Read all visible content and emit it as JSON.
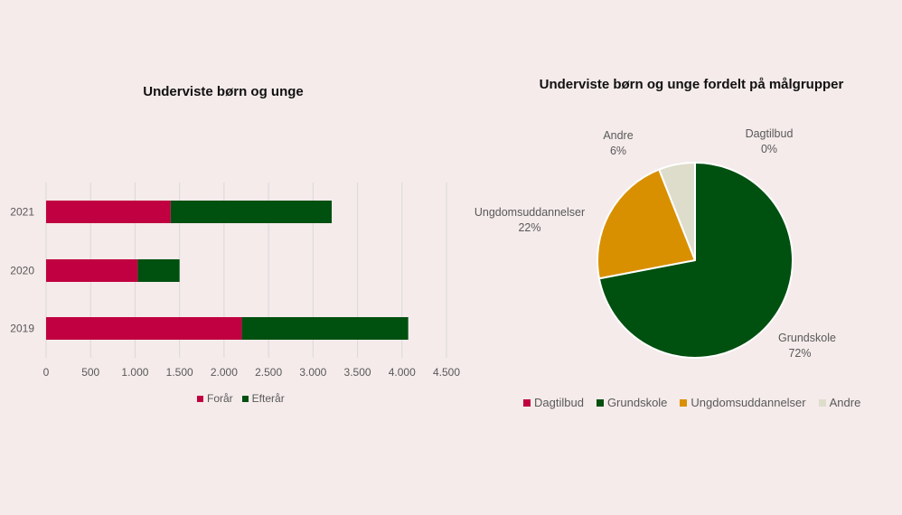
{
  "chart_data": [
    {
      "type": "bar",
      "orientation": "horizontal",
      "stacked": true,
      "title": "Underviste børn og unge",
      "categories": [
        "2021",
        "2020",
        "2019"
      ],
      "series": [
        {
          "name": "Forår",
          "color": "#c00040",
          "values": [
            1400,
            1030,
            2200
          ]
        },
        {
          "name": "Efterår",
          "color": "#005010",
          "values": [
            1810,
            470,
            1870
          ]
        }
      ],
      "xlim": [
        0,
        4500
      ],
      "xticks": [
        "0",
        "500",
        "1.000",
        "1.500",
        "2.000",
        "2.500",
        "3.000",
        "3.500",
        "4.000",
        "4.500"
      ],
      "grid": true,
      "legend_position": "bottom"
    },
    {
      "type": "pie",
      "title": "Underviste børn og unge fordelt på målgrupper",
      "slices": [
        {
          "name": "Dagtilbud",
          "value": 0,
          "label": "0%",
          "color": "#c00040"
        },
        {
          "name": "Grundskole",
          "value": 72,
          "label": "72%",
          "color": "#005010"
        },
        {
          "name": "Ungdomsuddannelser",
          "value": 22,
          "label": "22%",
          "color": "#d99000"
        },
        {
          "name": "Andre",
          "value": 6,
          "label": "6%",
          "color": "#deddcc"
        }
      ],
      "legend_position": "bottom"
    }
  ]
}
